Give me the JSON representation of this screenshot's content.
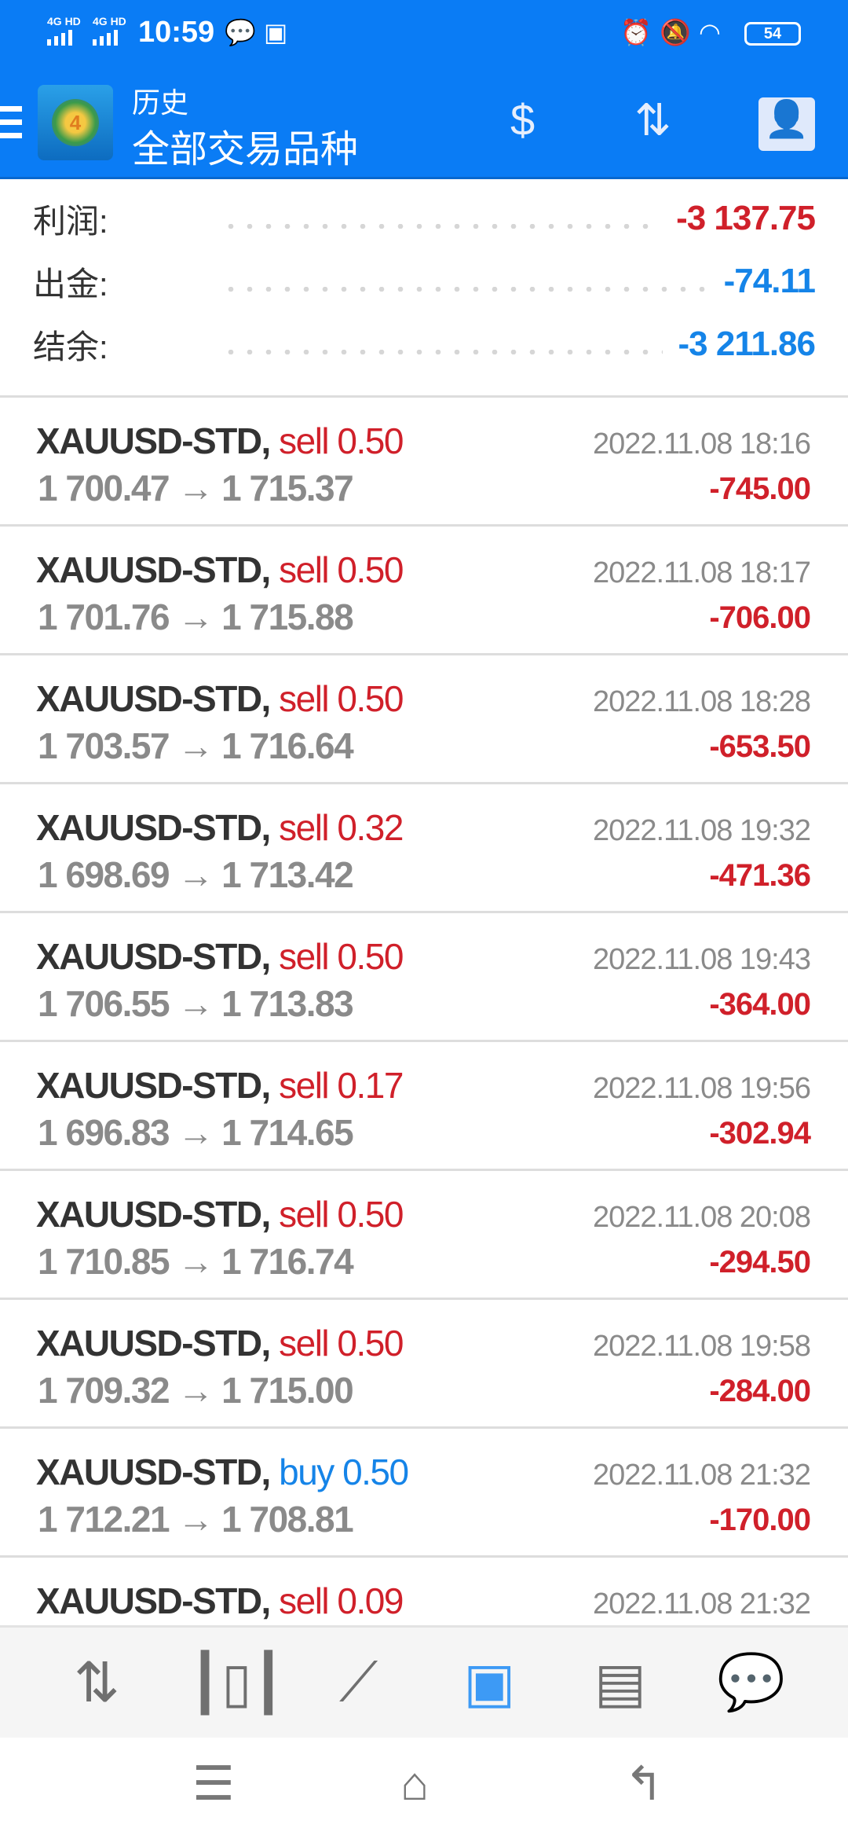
{
  "status_bar": {
    "network1": "4G HD",
    "network2": "4G HD",
    "time": "10:59",
    "battery": "54"
  },
  "header": {
    "subtitle": "历史",
    "title": "全部交易品种"
  },
  "summary": [
    {
      "label": "利润:",
      "value": "-3 137.75",
      "color": "#d0202a"
    },
    {
      "label": "出金:",
      "value": "-74.11",
      "color": "#1584e8"
    },
    {
      "label": "结余:",
      "value": "-3 211.86",
      "color": "#1584e8"
    }
  ],
  "trades": [
    {
      "symbol": "XAUUSD-STD,",
      "side": "sell 0.50",
      "prices": "1 700.47 → 1 715.37",
      "time": "2022.11.08 18:16",
      "profit": "-745.00"
    },
    {
      "symbol": "XAUUSD-STD,",
      "side": "sell 0.50",
      "prices": "1 701.76 → 1 715.88",
      "time": "2022.11.08 18:17",
      "profit": "-706.00"
    },
    {
      "symbol": "XAUUSD-STD,",
      "side": "sell 0.50",
      "prices": "1 703.57 → 1 716.64",
      "time": "2022.11.08 18:28",
      "profit": "-653.50"
    },
    {
      "symbol": "XAUUSD-STD,",
      "side": "sell 0.32",
      "prices": "1 698.69 → 1 713.42",
      "time": "2022.11.08 19:32",
      "profit": "-471.36"
    },
    {
      "symbol": "XAUUSD-STD,",
      "side": "sell 0.50",
      "prices": "1 706.55 → 1 713.83",
      "time": "2022.11.08 19:43",
      "profit": "-364.00"
    },
    {
      "symbol": "XAUUSD-STD,",
      "side": "sell 0.17",
      "prices": "1 696.83 → 1 714.65",
      "time": "2022.11.08 19:56",
      "profit": "-302.94"
    },
    {
      "symbol": "XAUUSD-STD,",
      "side": "sell 0.50",
      "prices": "1 710.85 → 1 716.74",
      "time": "2022.11.08 20:08",
      "profit": "-294.50"
    },
    {
      "symbol": "XAUUSD-STD,",
      "side": "sell 0.50",
      "prices": "1 709.32 → 1 715.00",
      "time": "2022.11.08 19:58",
      "profit": "-284.00"
    },
    {
      "symbol": "XAUUSD-STD,",
      "side": "buy 0.50",
      "prices": "1 712.21 → 1 708.81",
      "time": "2022.11.08 21:32",
      "profit": "-170.00"
    },
    {
      "symbol": "XAUUSD-STD,",
      "side": "sell 0.09",
      "prices": "",
      "time": "2022.11.08 21:32",
      "profit": ""
    }
  ],
  "colors": {
    "accent": "#0a7cf5",
    "loss": "#d0202a",
    "buy": "#1584e8"
  },
  "bottom_nav": [
    "quotes-icon",
    "charts-icon",
    "trade-icon",
    "history-icon",
    "news-icon",
    "chat-icon"
  ],
  "bottom_nav_active": "history-icon"
}
